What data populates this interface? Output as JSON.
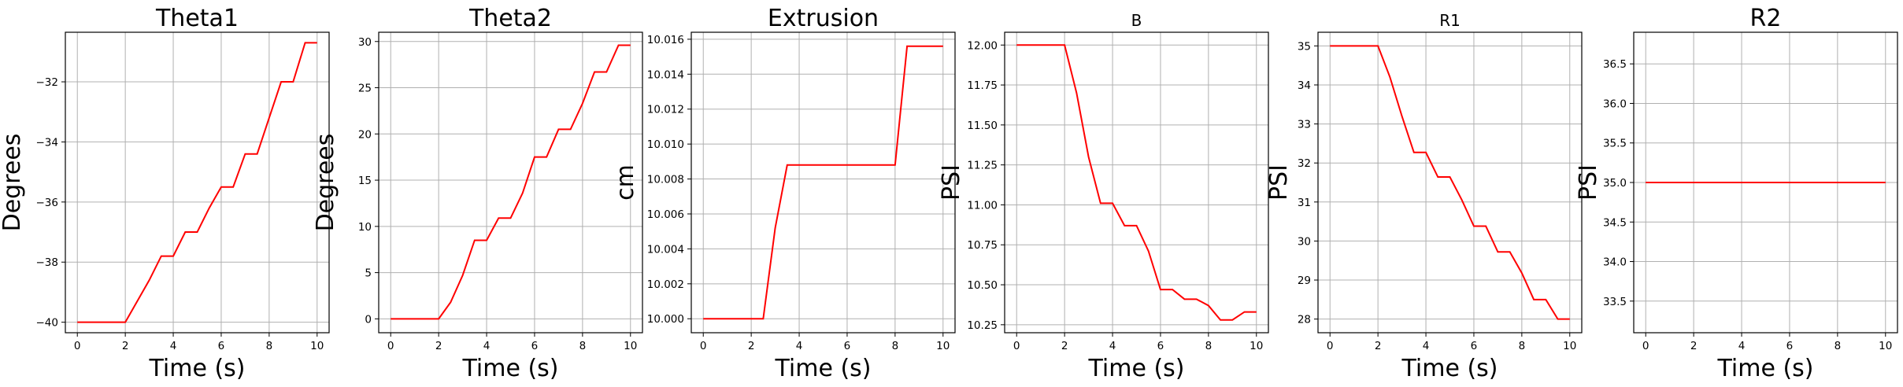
{
  "chart_data": [
    {
      "type": "line",
      "title": "Theta1",
      "xlabel": "Time (s)",
      "ylabel": "Degrees",
      "xlim": [
        -0.5,
        10.5
      ],
      "ylim": [
        -40.35,
        -30.35
      ],
      "xticks": [
        0,
        2,
        4,
        6,
        8,
        10
      ],
      "yticks": [
        -40,
        -38,
        -36,
        -34,
        -32
      ],
      "ytick_labels": [
        "−40",
        "−38",
        "−36",
        "−34",
        "−32"
      ],
      "grid": true,
      "color": "#ff0000",
      "x": [
        0,
        0.5,
        1,
        1.5,
        2,
        2.5,
        3,
        3.5,
        4,
        4.5,
        5,
        5.5,
        6,
        6.5,
        7,
        7.5,
        8,
        8.5,
        9,
        9.5,
        10
      ],
      "y": [
        -40,
        -40,
        -40,
        -40,
        -40,
        -39.3,
        -38.6,
        -37.8,
        -37.8,
        -37,
        -37,
        -36.2,
        -35.5,
        -35.5,
        -34.4,
        -34.4,
        -33.2,
        -32,
        -32,
        -30.7,
        -30.7
      ]
    },
    {
      "type": "line",
      "title": "Theta2",
      "xlabel": "Time (s)",
      "ylabel": "Degrees",
      "xlim": [
        -0.5,
        10.5
      ],
      "ylim": [
        -1.5,
        31
      ],
      "xticks": [
        0,
        2,
        4,
        6,
        8,
        10
      ],
      "yticks": [
        0,
        5,
        10,
        15,
        20,
        25,
        30
      ],
      "grid": true,
      "color": "#ff0000",
      "x": [
        0,
        0.5,
        1,
        1.5,
        2,
        2.5,
        3,
        3.5,
        4,
        4.5,
        5,
        5.5,
        6,
        6.5,
        7,
        7.5,
        8,
        8.5,
        9,
        9.5,
        10
      ],
      "y": [
        0,
        0,
        0,
        0,
        0,
        1.8,
        4.7,
        8.5,
        8.5,
        10.9,
        10.9,
        13.6,
        17.5,
        17.5,
        20.5,
        20.5,
        23.3,
        26.7,
        26.7,
        29.6,
        29.6
      ]
    },
    {
      "type": "line",
      "title": "Extrusion",
      "xlabel": "Time (s)",
      "ylabel": "cm",
      "xlim": [
        -0.5,
        10.5
      ],
      "ylim": [
        9.9992,
        10.0164
      ],
      "xticks": [
        0,
        2,
        4,
        6,
        8,
        10
      ],
      "yticks": [
        10.0,
        10.002,
        10.004,
        10.006,
        10.008,
        10.01,
        10.012,
        10.014,
        10.016
      ],
      "ytick_labels": [
        "10.000",
        "10.002",
        "10.004",
        "10.006",
        "10.008",
        "10.010",
        "10.012",
        "10.014",
        "10.016"
      ],
      "grid": true,
      "color": "#ff0000",
      "x": [
        0,
        0.5,
        1,
        1.5,
        2,
        2.5,
        3,
        3.5,
        4,
        4.5,
        5,
        5.5,
        6,
        6.5,
        7,
        7.5,
        8,
        8.5,
        9,
        9.5,
        10
      ],
      "y": [
        10.0,
        10.0,
        10.0,
        10.0,
        10.0,
        10.0,
        10.0052,
        10.0088,
        10.0088,
        10.0088,
        10.0088,
        10.0088,
        10.0088,
        10.0088,
        10.0088,
        10.0088,
        10.0088,
        10.0156,
        10.0156,
        10.0156,
        10.0156
      ]
    },
    {
      "type": "line",
      "title": "B",
      "xlabel": "Time (s)",
      "ylabel": "PSI",
      "xlim": [
        -0.5,
        10.5
      ],
      "ylim": [
        10.2,
        12.08
      ],
      "xticks": [
        0,
        2,
        4,
        6,
        8,
        10
      ],
      "yticks": [
        10.25,
        10.5,
        10.75,
        11.0,
        11.25,
        11.5,
        11.75,
        12.0
      ],
      "ytick_labels": [
        "10.25",
        "10.50",
        "10.75",
        "11.00",
        "11.25",
        "11.50",
        "11.75",
        "12.00"
      ],
      "grid": true,
      "color": "#ff0000",
      "x": [
        0,
        0.5,
        1,
        1.5,
        2,
        2.5,
        3,
        3.5,
        4,
        4.5,
        5,
        5.5,
        6,
        6.5,
        7,
        7.5,
        8,
        8.5,
        9,
        9.5,
        10
      ],
      "y": [
        12.0,
        12.0,
        12.0,
        12.0,
        12.0,
        11.7,
        11.3,
        11.01,
        11.01,
        10.87,
        10.87,
        10.71,
        10.47,
        10.47,
        10.41,
        10.41,
        10.37,
        10.28,
        10.28,
        10.33,
        10.33
      ]
    },
    {
      "type": "line",
      "title": "R1",
      "xlabel": "Time (s)",
      "ylabel": "PSI",
      "xlim": [
        -0.5,
        10.5
      ],
      "ylim": [
        27.65,
        35.35
      ],
      "xticks": [
        0,
        2,
        4,
        6,
        8,
        10
      ],
      "yticks": [
        28,
        29,
        30,
        31,
        32,
        33,
        34,
        35
      ],
      "grid": true,
      "color": "#ff0000",
      "x": [
        0,
        0.5,
        1,
        1.5,
        2,
        2.5,
        3,
        3.5,
        4,
        4.5,
        5,
        5.5,
        6,
        6.5,
        7,
        7.5,
        8,
        8.5,
        9,
        9.5,
        10
      ],
      "y": [
        35,
        35,
        35,
        35,
        35,
        34.2,
        33.2,
        32.27,
        32.27,
        31.64,
        31.64,
        31.05,
        30.38,
        30.38,
        29.72,
        29.72,
        29.18,
        28.5,
        28.5,
        28.0,
        28.0
      ]
    },
    {
      "type": "line",
      "title": "R2",
      "xlabel": "Time (s)",
      "ylabel": "PSI",
      "xlim": [
        -0.5,
        10.5
      ],
      "ylim": [
        33.1,
        36.9
      ],
      "xticks": [
        0,
        2,
        4,
        6,
        8,
        10
      ],
      "yticks": [
        33.5,
        34.0,
        34.5,
        35.0,
        35.5,
        36.0,
        36.5
      ],
      "ytick_labels": [
        "33.5",
        "34.0",
        "34.5",
        "35.0",
        "35.5",
        "36.0",
        "36.5"
      ],
      "grid": true,
      "color": "#ff0000",
      "x": [
        0,
        10
      ],
      "y": [
        35,
        35
      ]
    }
  ]
}
